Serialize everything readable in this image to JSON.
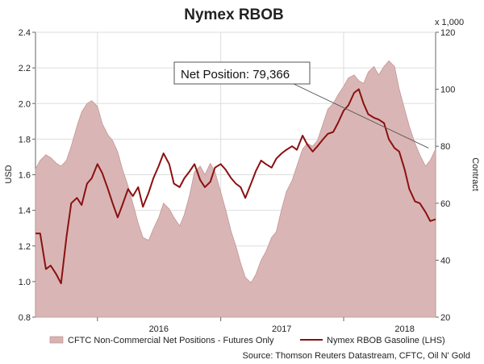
{
  "chart_data": {
    "type": "line",
    "title": "Nymex RBOB",
    "ylabel": "USD",
    "y2label": "Contract",
    "y2_multiplier_label": "x 1,000",
    "ylim": [
      0.8,
      2.4
    ],
    "y2lim": [
      20,
      120
    ],
    "yticks": [
      "0.8",
      "1.0",
      "1.2",
      "1.4",
      "1.6",
      "1.8",
      "2.0",
      "2.2",
      "2.4"
    ],
    "y2ticks": [
      "20",
      "40",
      "60",
      "80",
      "100",
      "120"
    ],
    "xlim": [
      "2015-07-01",
      "2018-10-01"
    ],
    "year_labels": [
      {
        "label": "2016",
        "date": "2016-07-01"
      },
      {
        "label": "2017",
        "date": "2017-07-01"
      },
      {
        "label": "2018",
        "date": "2018-07-01"
      }
    ],
    "year_boundaries": [
      "2016-01-01",
      "2017-01-01",
      "2018-01-01"
    ],
    "grid": true,
    "legend_position": "bottom",
    "annotation": {
      "text": "Net Position: 79,366",
      "date": "2018-09-10",
      "value": 79.366
    },
    "source": "Source: Thomson Reuters Datastream, CFTC, Oil N' Gold",
    "series": [
      {
        "name": "CFTC Non-Commercial Net Positions - Futures Only",
        "kind": "area",
        "axis": "right",
        "color": "#c99a99",
        "points": [
          [
            "2015-07-01",
            72
          ],
          [
            "2015-07-15",
            75
          ],
          [
            "2015-08-01",
            77
          ],
          [
            "2015-08-15",
            76
          ],
          [
            "2015-09-01",
            74
          ],
          [
            "2015-09-15",
            73
          ],
          [
            "2015-10-01",
            75
          ],
          [
            "2015-10-15",
            80
          ],
          [
            "2015-11-01",
            87
          ],
          [
            "2015-11-15",
            92
          ],
          [
            "2015-12-01",
            95
          ],
          [
            "2015-12-15",
            96
          ],
          [
            "2016-01-01",
            94
          ],
          [
            "2016-01-15",
            88
          ],
          [
            "2016-02-01",
            84
          ],
          [
            "2016-02-15",
            82
          ],
          [
            "2016-03-01",
            78
          ],
          [
            "2016-03-15",
            72
          ],
          [
            "2016-04-01",
            66
          ],
          [
            "2016-04-15",
            60
          ],
          [
            "2016-05-01",
            53
          ],
          [
            "2016-05-15",
            48
          ],
          [
            "2016-06-01",
            47
          ],
          [
            "2016-06-15",
            51
          ],
          [
            "2016-07-01",
            55
          ],
          [
            "2016-07-15",
            60
          ],
          [
            "2016-08-01",
            58
          ],
          [
            "2016-08-15",
            55
          ],
          [
            "2016-09-01",
            52
          ],
          [
            "2016-09-15",
            56
          ],
          [
            "2016-10-01",
            63
          ],
          [
            "2016-10-15",
            71
          ],
          [
            "2016-11-01",
            73
          ],
          [
            "2016-11-15",
            70
          ],
          [
            "2016-12-01",
            74
          ],
          [
            "2016-12-15",
            71
          ],
          [
            "2017-01-01",
            64
          ],
          [
            "2017-01-15",
            58
          ],
          [
            "2017-02-01",
            50
          ],
          [
            "2017-02-15",
            45
          ],
          [
            "2017-03-01",
            39
          ],
          [
            "2017-03-15",
            34
          ],
          [
            "2017-04-01",
            32
          ],
          [
            "2017-04-15",
            35
          ],
          [
            "2017-05-01",
            40
          ],
          [
            "2017-05-15",
            43
          ],
          [
            "2017-06-01",
            48
          ],
          [
            "2017-06-15",
            50
          ],
          [
            "2017-07-01",
            58
          ],
          [
            "2017-07-15",
            64
          ],
          [
            "2017-08-01",
            68
          ],
          [
            "2017-08-15",
            73
          ],
          [
            "2017-09-01",
            79
          ],
          [
            "2017-09-15",
            81
          ],
          [
            "2017-10-01",
            80
          ],
          [
            "2017-10-15",
            82
          ],
          [
            "2017-11-01",
            88
          ],
          [
            "2017-11-15",
            93
          ],
          [
            "2017-12-01",
            95
          ],
          [
            "2017-12-15",
            98
          ],
          [
            "2018-01-01",
            101
          ],
          [
            "2018-01-15",
            104
          ],
          [
            "2018-02-01",
            105
          ],
          [
            "2018-02-15",
            103
          ],
          [
            "2018-03-01",
            102
          ],
          [
            "2018-03-15",
            106
          ],
          [
            "2018-04-01",
            108
          ],
          [
            "2018-04-15",
            105
          ],
          [
            "2018-05-01",
            108
          ],
          [
            "2018-05-15",
            110
          ],
          [
            "2018-06-01",
            108
          ],
          [
            "2018-06-15",
            100
          ],
          [
            "2018-07-01",
            93
          ],
          [
            "2018-07-15",
            87
          ],
          [
            "2018-08-01",
            81
          ],
          [
            "2018-08-15",
            77
          ],
          [
            "2018-09-01",
            73
          ],
          [
            "2018-09-15",
            75
          ],
          [
            "2018-10-01",
            79
          ]
        ]
      },
      {
        "name": "Nymex RBOB Gasoline (LHS)",
        "kind": "line",
        "axis": "left",
        "color": "#8b1010",
        "points": [
          [
            "2015-07-01",
            1.27
          ],
          [
            "2015-07-15",
            1.27
          ],
          [
            "2015-08-01",
            1.07
          ],
          [
            "2015-08-15",
            1.09
          ],
          [
            "2015-09-01",
            1.04
          ],
          [
            "2015-09-15",
            0.99
          ],
          [
            "2015-10-01",
            1.25
          ],
          [
            "2015-10-15",
            1.44
          ],
          [
            "2015-11-01",
            1.47
          ],
          [
            "2015-11-15",
            1.43
          ],
          [
            "2015-12-01",
            1.55
          ],
          [
            "2015-12-15",
            1.58
          ],
          [
            "2016-01-01",
            1.66
          ],
          [
            "2016-01-15",
            1.61
          ],
          [
            "2016-02-01",
            1.52
          ],
          [
            "2016-02-15",
            1.44
          ],
          [
            "2016-03-01",
            1.36
          ],
          [
            "2016-03-15",
            1.43
          ],
          [
            "2016-04-01",
            1.52
          ],
          [
            "2016-04-15",
            1.48
          ],
          [
            "2016-05-01",
            1.53
          ],
          [
            "2016-05-15",
            1.42
          ],
          [
            "2016-06-01",
            1.5
          ],
          [
            "2016-06-15",
            1.58
          ],
          [
            "2016-07-01",
            1.65
          ],
          [
            "2016-07-15",
            1.72
          ],
          [
            "2016-08-01",
            1.66
          ],
          [
            "2016-08-15",
            1.55
          ],
          [
            "2016-09-01",
            1.53
          ],
          [
            "2016-09-15",
            1.58
          ],
          [
            "2016-10-01",
            1.62
          ],
          [
            "2016-10-15",
            1.66
          ],
          [
            "2016-11-01",
            1.57
          ],
          [
            "2016-11-15",
            1.53
          ],
          [
            "2016-12-01",
            1.56
          ],
          [
            "2016-12-15",
            1.64
          ],
          [
            "2017-01-01",
            1.66
          ],
          [
            "2017-01-15",
            1.63
          ],
          [
            "2017-02-01",
            1.58
          ],
          [
            "2017-02-15",
            1.55
          ],
          [
            "2017-03-01",
            1.53
          ],
          [
            "2017-03-15",
            1.47
          ],
          [
            "2017-04-01",
            1.55
          ],
          [
            "2017-04-15",
            1.62
          ],
          [
            "2017-05-01",
            1.68
          ],
          [
            "2017-05-15",
            1.66
          ],
          [
            "2017-06-01",
            1.64
          ],
          [
            "2017-06-15",
            1.69
          ],
          [
            "2017-07-01",
            1.72
          ],
          [
            "2017-07-15",
            1.74
          ],
          [
            "2017-08-01",
            1.76
          ],
          [
            "2017-08-15",
            1.74
          ],
          [
            "2017-09-01",
            1.82
          ],
          [
            "2017-09-15",
            1.77
          ],
          [
            "2017-10-01",
            1.73
          ],
          [
            "2017-10-15",
            1.76
          ],
          [
            "2017-11-01",
            1.8
          ],
          [
            "2017-11-15",
            1.83
          ],
          [
            "2017-12-01",
            1.84
          ],
          [
            "2017-12-15",
            1.89
          ],
          [
            "2018-01-01",
            1.96
          ],
          [
            "2018-01-15",
            1.99
          ],
          [
            "2018-02-01",
            2.06
          ],
          [
            "2018-02-15",
            2.08
          ],
          [
            "2018-03-01",
            2.0
          ],
          [
            "2018-03-15",
            1.94
          ],
          [
            "2018-04-01",
            1.92
          ],
          [
            "2018-04-15",
            1.91
          ],
          [
            "2018-05-01",
            1.89
          ],
          [
            "2018-05-15",
            1.8
          ],
          [
            "2018-06-01",
            1.75
          ],
          [
            "2018-06-15",
            1.73
          ],
          [
            "2018-07-01",
            1.63
          ],
          [
            "2018-07-15",
            1.52
          ],
          [
            "2018-08-01",
            1.45
          ],
          [
            "2018-08-15",
            1.44
          ],
          [
            "2018-09-01",
            1.39
          ],
          [
            "2018-09-15",
            1.34
          ],
          [
            "2018-10-01",
            1.35
          ]
        ]
      }
    ]
  }
}
